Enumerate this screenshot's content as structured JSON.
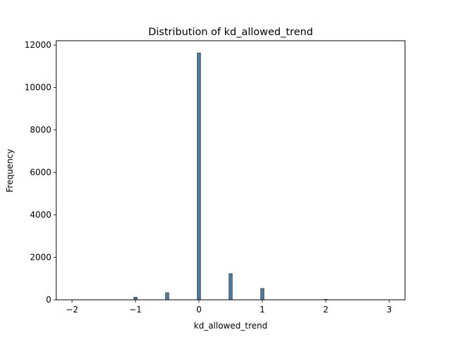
{
  "chart_data": {
    "type": "bar",
    "subtype": "histogram",
    "title": "Distribution of kd_allowed_trend",
    "xlabel": "kd_allowed_trend",
    "ylabel": "Frequency",
    "xlim": [
      -2.25,
      3.25
    ],
    "ylim": [
      0,
      12200
    ],
    "xticks": [
      -2,
      -1,
      0,
      1,
      2,
      3
    ],
    "yticks": [
      0,
      2000,
      4000,
      6000,
      8000,
      10000,
      12000
    ],
    "bin_width": 0.05,
    "bins": [
      {
        "x": -1.0,
        "value": 120
      },
      {
        "x": -0.5,
        "value": 330
      },
      {
        "x": 0.0,
        "value": 11620
      },
      {
        "x": 0.5,
        "value": 1230
      },
      {
        "x": 1.0,
        "value": 530
      },
      {
        "x": 2.0,
        "value": 20
      }
    ],
    "bar_color": "#4d7fa3",
    "edge_color": "#2b2b2b"
  }
}
